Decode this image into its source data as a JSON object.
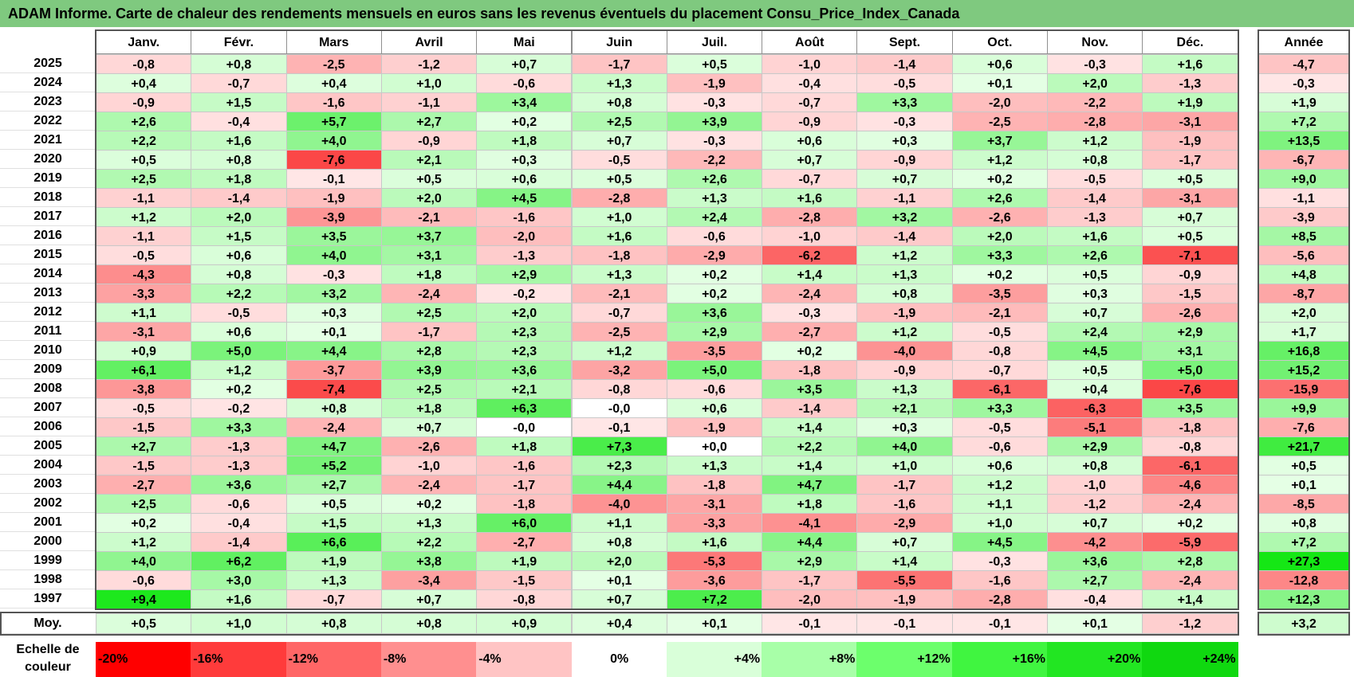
{
  "title": "ADAM Informe. Carte de chaleur des rendements mensuels en euros sans les revenus éventuels du placement Consu_Price_Index_Canada",
  "chart_data": {
    "type": "heatmap",
    "columns": [
      "Janv.",
      "Févr.",
      "Mars",
      "Avril",
      "Mai",
      "Juin",
      "Juil.",
      "Août",
      "Sept.",
      "Oct.",
      "Nov.",
      "Déc."
    ],
    "annual_header": "Année",
    "rows": [
      {
        "year": "2025",
        "values": [
          "-0,8",
          "+0,8",
          "-2,5",
          "-1,2",
          "+0,7",
          "-1,7",
          "+0,5",
          "-1,0",
          "-1,4",
          "+0,6",
          "-0,3",
          "+1,6"
        ],
        "annual": "-4,7"
      },
      {
        "year": "2024",
        "values": [
          "+0,4",
          "-0,7",
          "+0,4",
          "+1,0",
          "-0,6",
          "+1,3",
          "-1,9",
          "-0,4",
          "-0,5",
          "+0,1",
          "+2,0",
          "-1,3"
        ],
        "annual": "-0,3"
      },
      {
        "year": "2023",
        "values": [
          "-0,9",
          "+1,5",
          "-1,6",
          "-1,1",
          "+3,4",
          "+0,8",
          "-0,3",
          "-0,7",
          "+3,3",
          "-2,0",
          "-2,2",
          "+1,9"
        ],
        "annual": "+1,9"
      },
      {
        "year": "2022",
        "values": [
          "+2,6",
          "-0,4",
          "+5,7",
          "+2,7",
          "+0,2",
          "+2,5",
          "+3,9",
          "-0,9",
          "-0,3",
          "-2,5",
          "-2,8",
          "-3,1"
        ],
        "annual": "+7,2"
      },
      {
        "year": "2021",
        "values": [
          "+2,2",
          "+1,6",
          "+4,0",
          "-0,9",
          "+1,8",
          "+0,7",
          "-0,3",
          "+0,6",
          "+0,3",
          "+3,7",
          "+1,2",
          "-1,9"
        ],
        "annual": "+13,5"
      },
      {
        "year": "2020",
        "values": [
          "+0,5",
          "+0,8",
          "-7,6",
          "+2,1",
          "+0,3",
          "-0,5",
          "-2,2",
          "+0,7",
          "-0,9",
          "+1,2",
          "+0,8",
          "-1,7"
        ],
        "annual": "-6,7"
      },
      {
        "year": "2019",
        "values": [
          "+2,5",
          "+1,8",
          "-0,1",
          "+0,5",
          "+0,6",
          "+0,5",
          "+2,6",
          "-0,7",
          "+0,7",
          "+0,2",
          "-0,5",
          "+0,5"
        ],
        "annual": "+9,0"
      },
      {
        "year": "2018",
        "values": [
          "-1,1",
          "-1,4",
          "-1,9",
          "+2,0",
          "+4,5",
          "-2,8",
          "+1,3",
          "+1,6",
          "-1,1",
          "+2,6",
          "-1,4",
          "-3,1"
        ],
        "annual": "-1,1"
      },
      {
        "year": "2017",
        "values": [
          "+1,2",
          "+2,0",
          "-3,9",
          "-2,1",
          "-1,6",
          "+1,0",
          "+2,4",
          "-2,8",
          "+3,2",
          "-2,6",
          "-1,3",
          "+0,7"
        ],
        "annual": "-3,9"
      },
      {
        "year": "2016",
        "values": [
          "-1,1",
          "+1,5",
          "+3,5",
          "+3,7",
          "-2,0",
          "+1,6",
          "-0,6",
          "-1,0",
          "-1,4",
          "+2,0",
          "+1,6",
          "+0,5"
        ],
        "annual": "+8,5"
      },
      {
        "year": "2015",
        "values": [
          "-0,5",
          "+0,6",
          "+4,0",
          "+3,1",
          "-1,3",
          "-1,8",
          "-2,9",
          "-6,2",
          "+1,2",
          "+3,3",
          "+2,6",
          "-7,1"
        ],
        "annual": "-5,6"
      },
      {
        "year": "2014",
        "values": [
          "-4,3",
          "+0,8",
          "-0,3",
          "+1,8",
          "+2,9",
          "+1,3",
          "+0,2",
          "+1,4",
          "+1,3",
          "+0,2",
          "+0,5",
          "-0,9"
        ],
        "annual": "+4,8"
      },
      {
        "year": "2013",
        "values": [
          "-3,3",
          "+2,2",
          "+3,2",
          "-2,4",
          "-0,2",
          "-2,1",
          "+0,2",
          "-2,4",
          "+0,8",
          "-3,5",
          "+0,3",
          "-1,5"
        ],
        "annual": "-8,7"
      },
      {
        "year": "2012",
        "values": [
          "+1,1",
          "-0,5",
          "+0,3",
          "+2,5",
          "+2,0",
          "-0,7",
          "+3,6",
          "-0,3",
          "-1,9",
          "-2,1",
          "+0,7",
          "-2,6"
        ],
        "annual": "+2,0"
      },
      {
        "year": "2011",
        "values": [
          "-3,1",
          "+0,6",
          "+0,1",
          "-1,7",
          "+2,3",
          "-2,5",
          "+2,9",
          "-2,7",
          "+1,2",
          "-0,5",
          "+2,4",
          "+2,9"
        ],
        "annual": "+1,7"
      },
      {
        "year": "2010",
        "values": [
          "+0,9",
          "+5,0",
          "+4,4",
          "+2,8",
          "+2,3",
          "+1,2",
          "-3,5",
          "+0,2",
          "-4,0",
          "-0,8",
          "+4,5",
          "+3,1"
        ],
        "annual": "+16,8"
      },
      {
        "year": "2009",
        "values": [
          "+6,1",
          "+1,2",
          "-3,7",
          "+3,9",
          "+3,6",
          "-3,2",
          "+5,0",
          "-1,8",
          "-0,9",
          "-0,7",
          "+0,5",
          "+5,0"
        ],
        "annual": "+15,2"
      },
      {
        "year": "2008",
        "values": [
          "-3,8",
          "+0,2",
          "-7,4",
          "+2,5",
          "+2,1",
          "-0,8",
          "-0,6",
          "+3,5",
          "+1,3",
          "-6,1",
          "+0,4",
          "-7,6"
        ],
        "annual": "-15,9"
      },
      {
        "year": "2007",
        "values": [
          "-0,5",
          "-0,2",
          "+0,8",
          "+1,8",
          "+6,3",
          "-0,0",
          "+0,6",
          "-1,4",
          "+2,1",
          "+3,3",
          "-6,3",
          "+3,5"
        ],
        "annual": "+9,9"
      },
      {
        "year": "2006",
        "values": [
          "-1,5",
          "+3,3",
          "-2,4",
          "+0,7",
          "-0,0",
          "-0,1",
          "-1,9",
          "+1,4",
          "+0,3",
          "-0,5",
          "-5,1",
          "-1,8"
        ],
        "annual": "-7,6"
      },
      {
        "year": "2005",
        "values": [
          "+2,7",
          "-1,3",
          "+4,7",
          "-2,6",
          "+1,8",
          "+7,3",
          "+0,0",
          "+2,2",
          "+4,0",
          "-0,6",
          "+2,9",
          "-0,8"
        ],
        "annual": "+21,7"
      },
      {
        "year": "2004",
        "values": [
          "-1,5",
          "-1,3",
          "+5,2",
          "-1,0",
          "-1,6",
          "+2,3",
          "+1,3",
          "+1,4",
          "+1,0",
          "+0,6",
          "+0,8",
          "-6,1"
        ],
        "annual": "+0,5"
      },
      {
        "year": "2003",
        "values": [
          "-2,7",
          "+3,6",
          "+2,7",
          "-2,4",
          "-1,7",
          "+4,4",
          "-1,8",
          "+4,7",
          "-1,7",
          "+1,2",
          "-1,0",
          "-4,6"
        ],
        "annual": "+0,1"
      },
      {
        "year": "2002",
        "values": [
          "+2,5",
          "-0,6",
          "+0,5",
          "+0,2",
          "-1,8",
          "-4,0",
          "-3,1",
          "+1,8",
          "-1,6",
          "+1,1",
          "-1,2",
          "-2,4"
        ],
        "annual": "-8,5"
      },
      {
        "year": "2001",
        "values": [
          "+0,2",
          "-0,4",
          "+1,5",
          "+1,3",
          "+6,0",
          "+1,1",
          "-3,3",
          "-4,1",
          "-2,9",
          "+1,0",
          "+0,7",
          "+0,2"
        ],
        "annual": "+0,8"
      },
      {
        "year": "2000",
        "values": [
          "+1,2",
          "-1,4",
          "+6,6",
          "+2,2",
          "-2,7",
          "+0,8",
          "+1,6",
          "+4,4",
          "+0,7",
          "+4,5",
          "-4,2",
          "-5,9"
        ],
        "annual": "+7,2"
      },
      {
        "year": "1999",
        "values": [
          "+4,0",
          "+6,2",
          "+1,9",
          "+3,8",
          "+1,9",
          "+2,0",
          "-5,3",
          "+2,9",
          "+1,4",
          "-0,3",
          "+3,6",
          "+2,8"
        ],
        "annual": "+27,3"
      },
      {
        "year": "1998",
        "values": [
          "-0,6",
          "+3,0",
          "+1,3",
          "-3,4",
          "-1,5",
          "+0,1",
          "-3,6",
          "-1,7",
          "-5,5",
          "-1,6",
          "+2,7",
          "-2,4"
        ],
        "annual": "-12,8"
      },
      {
        "year": "1997",
        "values": [
          "+9,4",
          "+1,6",
          "-0,7",
          "+0,7",
          "-0,8",
          "+0,7",
          "+7,2",
          "-2,0",
          "-1,9",
          "-2,8",
          "-0,4",
          "+1,4"
        ],
        "annual": "+12,3"
      }
    ],
    "average": {
      "label": "Moy.",
      "values": [
        "+0,5",
        "+1,0",
        "+0,8",
        "+0,8",
        "+0,9",
        "+0,4",
        "+0,1",
        "-0,1",
        "-0,1",
        "-0,1",
        "+0,1",
        "-1,2"
      ],
      "annual": "+3,2"
    },
    "scale": {
      "label_line1": "Echelle de",
      "label_line2": "couleur",
      "steps": [
        "-20%",
        "-16%",
        "-12%",
        "-8%",
        "-4%",
        "0%",
        "+4%",
        "+8%",
        "+12%",
        "+16%",
        "+20%",
        "+24%"
      ]
    }
  }
}
